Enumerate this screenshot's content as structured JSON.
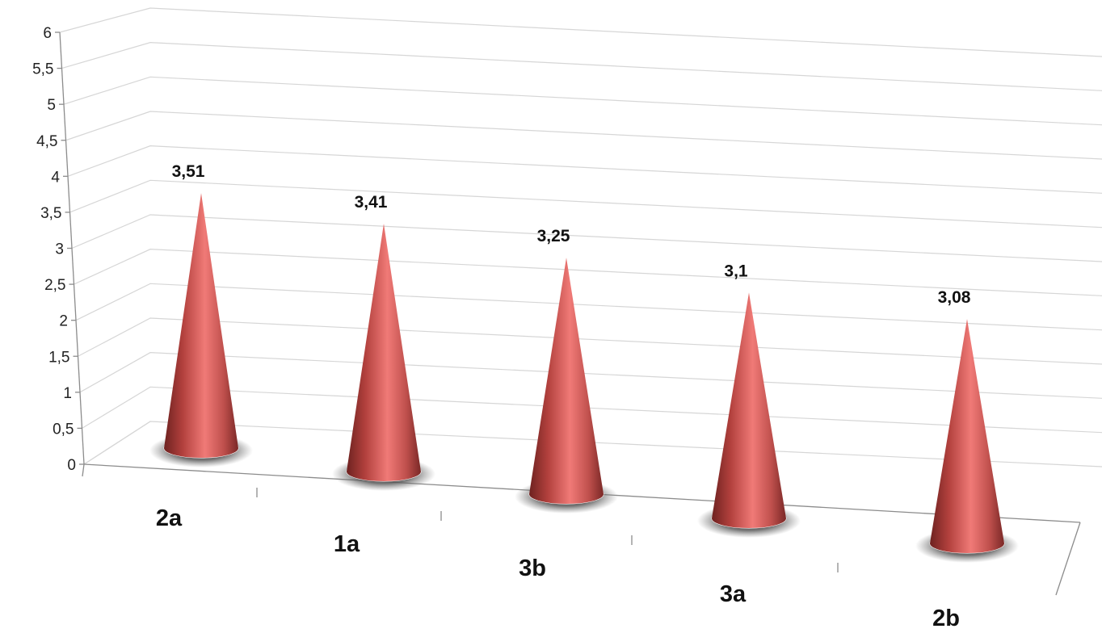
{
  "chart_data": {
    "type": "bar",
    "shape": "cone",
    "three_d": true,
    "categories": [
      "2a",
      "1a",
      "3b",
      "3a",
      "2b"
    ],
    "values": [
      3.51,
      3.41,
      3.25,
      3.1,
      3.08
    ],
    "data_labels": [
      "3,51",
      "3,41",
      "3,25",
      "3,1",
      "3,08"
    ],
    "ylim": [
      0,
      6
    ],
    "ytick_values": [
      0,
      0.5,
      1,
      1.5,
      2,
      2.5,
      3,
      3.5,
      4,
      4.5,
      5,
      5.5,
      6
    ],
    "ytick_labels": [
      "0",
      "0,5",
      "1",
      "1,5",
      "2",
      "2,5",
      "3",
      "3,5",
      "4",
      "4,5",
      "5",
      "5,5",
      "6"
    ],
    "grid": true,
    "legend": "none",
    "colors": {
      "cone_base": "#c0504d",
      "cone_highlight": "#f07a77",
      "cone_dark": "#6e2220",
      "gridline": "#d6d6d6",
      "axis": "#8c8c8c"
    }
  }
}
